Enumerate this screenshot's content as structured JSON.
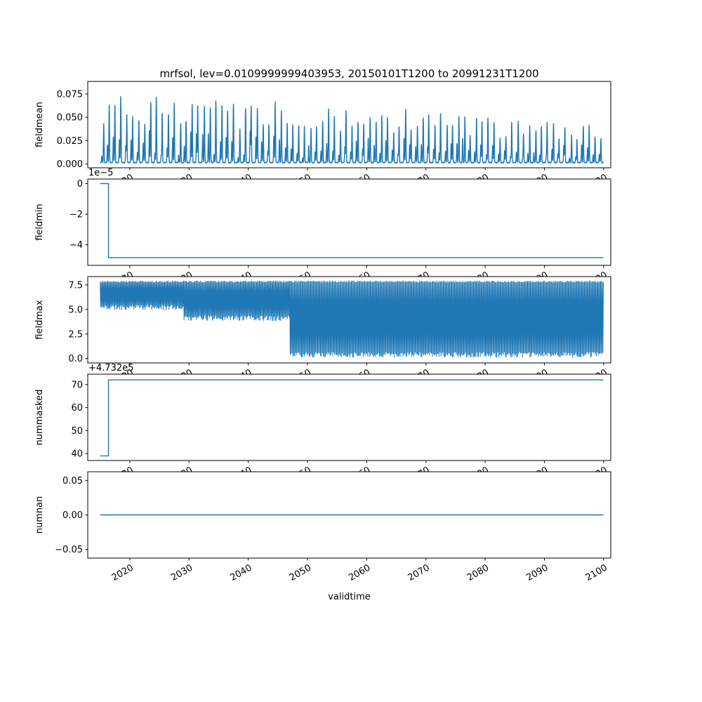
{
  "figure": {
    "title": "mrfsol, lev=0.0109999999403953, 20150101T1200 to 20991231T1200",
    "xlabel": "validtime",
    "background": "#ffffff",
    "line_color": "#1f77b4",
    "axis_color": "#000000",
    "x_range": [
      2012.9,
      2101.2
    ],
    "x_ticks": [
      {
        "v": 2020,
        "label": "2020"
      },
      {
        "v": 2030,
        "label": "2030"
      },
      {
        "v": 2040,
        "label": "2040"
      },
      {
        "v": 2050,
        "label": "2050"
      },
      {
        "v": 2060,
        "label": "2060"
      },
      {
        "v": 2070,
        "label": "2070"
      },
      {
        "v": 2080,
        "label": "2080"
      },
      {
        "v": 2090,
        "label": "2090"
      },
      {
        "v": 2100,
        "label": "2100"
      }
    ]
  },
  "chart_data": [
    {
      "type": "line",
      "ylabel": "fieldmean",
      "offset_text": "",
      "x_start": 2015.0,
      "x_end": 2099.97,
      "ylim": [
        -0.0042,
        0.0885
      ],
      "y_ticks": [
        {
          "v": 0.0,
          "label": "0.000"
        },
        {
          "v": 0.025,
          "label": "0.025"
        },
        {
          "v": 0.05,
          "label": "0.050"
        },
        {
          "v": 0.075,
          "label": "0.075"
        }
      ],
      "series_spec": {
        "kind": "spikes",
        "seed": 7,
        "dt": 0.025,
        "baseline": 0.001,
        "spike_width": 0.07,
        "envelope": [
          [
            2015,
            0.082
          ],
          [
            2025,
            0.076
          ],
          [
            2035,
            0.073
          ],
          [
            2045,
            0.07
          ],
          [
            2055,
            0.063
          ],
          [
            2065,
            0.06
          ],
          [
            2075,
            0.052
          ],
          [
            2085,
            0.047
          ],
          [
            2100,
            0.042
          ]
        ]
      }
    },
    {
      "type": "line",
      "ylabel": "fieldmin",
      "offset_text": "1e−5",
      "x_start": 2015.0,
      "x_end": 2099.97,
      "ylim": [
        -5.35e-05,
        3e-06
      ],
      "y_ticks": [
        {
          "v": 0,
          "label": "0"
        },
        {
          "v": -2e-05,
          "label": "−2"
        },
        {
          "v": -4e-05,
          "label": "−4"
        }
      ],
      "series_spec": {
        "kind": "step",
        "points": [
          [
            2015.0,
            0
          ],
          [
            2016.4,
            0
          ],
          [
            2016.4,
            -4.85e-05
          ],
          [
            2099.97,
            -4.85e-05
          ]
        ]
      }
    },
    {
      "type": "line",
      "ylabel": "fieldmax",
      "offset_text": "",
      "x_start": 2015.0,
      "x_end": 2099.97,
      "ylim": [
        -0.45,
        8.35
      ],
      "y_ticks": [
        {
          "v": 0.0,
          "label": "0.0"
        },
        {
          "v": 2.5,
          "label": "2.5"
        },
        {
          "v": 5.0,
          "label": "5.0"
        },
        {
          "v": 7.5,
          "label": "7.5"
        }
      ],
      "series_spec": {
        "kind": "oscillate",
        "seed": 11,
        "dt": 0.08,
        "upper": 7.9,
        "upper_jitter": 0.15,
        "lower_jitter": 0.55,
        "lower_segments": [
          [
            2015,
            2029,
            4.95
          ],
          [
            2029,
            2047,
            3.85
          ],
          [
            2047,
            2100,
            0.12
          ]
        ]
      }
    },
    {
      "type": "line",
      "ylabel": "nummasked",
      "offset_text": "+4.732e5",
      "x_start": 2015.0,
      "x_end": 2099.97,
      "ylim": [
        473237.0,
        473274.5
      ],
      "y_ticks": [
        {
          "v": 473240,
          "label": "40"
        },
        {
          "v": 473250,
          "label": "50"
        },
        {
          "v": 473260,
          "label": "60"
        },
        {
          "v": 473270,
          "label": "70"
        }
      ],
      "series_spec": {
        "kind": "step",
        "points": [
          [
            2015.0,
            473239
          ],
          [
            2016.4,
            473239
          ],
          [
            2016.4,
            473272
          ],
          [
            2099.97,
            473272
          ]
        ]
      }
    },
    {
      "type": "line",
      "ylabel": "numnan",
      "offset_text": "",
      "x_start": 2015.0,
      "x_end": 2099.97,
      "ylim": [
        -0.0625,
        0.0625
      ],
      "y_ticks": [
        {
          "v": -0.05,
          "label": "−0.05"
        },
        {
          "v": 0.0,
          "label": "0.00"
        },
        {
          "v": 0.05,
          "label": "0.05"
        }
      ],
      "series_spec": {
        "kind": "constant",
        "value": 0.0
      }
    }
  ]
}
